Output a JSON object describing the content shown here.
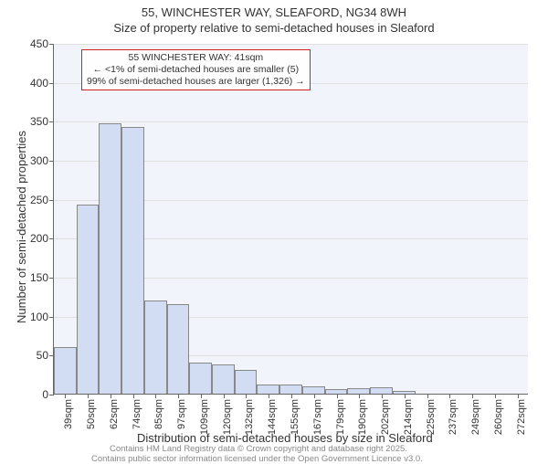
{
  "title": {
    "line1": "55, WINCHESTER WAY, SLEAFORD, NG34 8WH",
    "line2": "Size of property relative to semi-detached houses in Sleaford"
  },
  "chart": {
    "type": "histogram",
    "bar_fill": "#d2dcf2",
    "bar_border": "#888888",
    "plot_bg": "#f2f4fb",
    "grid_color": "#e0e0e0",
    "axis_color": "#666666",
    "ylabel": "Number of semi-detached properties",
    "xlabel": "Distribution of semi-detached houses by size in Sleaford",
    "ylim": [
      0,
      450
    ],
    "ytick_step": 50,
    "bar_width": 1.0,
    "label_fontsize": 13,
    "tick_fontsize": 12,
    "categories": [
      "39sqm",
      "50sqm",
      "62sqm",
      "74sqm",
      "85sqm",
      "97sqm",
      "109sqm",
      "120sqm",
      "132sqm",
      "144sqm",
      "155sqm",
      "167sqm",
      "179sqm",
      "190sqm",
      "202sqm",
      "214sqm",
      "225sqm",
      "237sqm",
      "249sqm",
      "260sqm",
      "272sqm"
    ],
    "values": [
      60,
      243,
      347,
      342,
      120,
      115,
      40,
      38,
      30,
      12,
      12,
      9,
      6,
      7,
      8,
      3,
      0,
      0,
      0,
      0,
      0
    ]
  },
  "annotation": {
    "line1": "55 WINCHESTER WAY: 41sqm",
    "line2": "← <1% of semi-detached houses are smaller (5)",
    "line3": "99% of semi-detached houses are larger (1,326) →",
    "border_color": "#d02020"
  },
  "footer": {
    "line1": "Contains HM Land Registry data © Crown copyright and database right 2025.",
    "line2": "Contains public sector information licensed under the Open Government Licence v3.0."
  }
}
